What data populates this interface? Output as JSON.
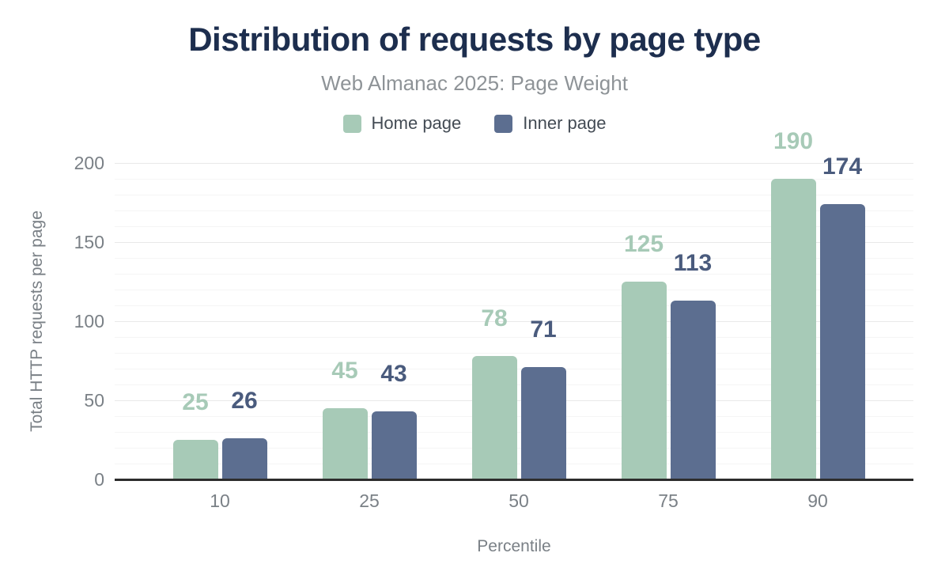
{
  "chart_data": {
    "type": "bar",
    "title": "Distribution of requests by page type",
    "subtitle": "Web Almanac 2025: Page Weight",
    "xlabel": "Percentile",
    "ylabel": "Total HTTP requests per page",
    "categories": [
      "10",
      "25",
      "50",
      "75",
      "90"
    ],
    "series": [
      {
        "name": "Home page",
        "color": "#a7cab7",
        "label_color": "#a7cab7",
        "values": [
          25,
          45,
          78,
          125,
          190
        ]
      },
      {
        "name": "Inner page",
        "color": "#5c6e90",
        "label_color": "#4a5b7d",
        "values": [
          26,
          43,
          71,
          113,
          174
        ]
      }
    ],
    "yticks": [
      0,
      50,
      100,
      150,
      200
    ],
    "ylim": [
      0,
      200
    ],
    "grid": {
      "minor_step": 10,
      "major_step": 50,
      "orientation": "horizontal"
    },
    "legend_position": "top"
  },
  "colors": {
    "title": "#1d2e4e",
    "subtitle": "#8e9397",
    "axis_text": "#7a8086",
    "axis_line": "#2d2d2d",
    "grid_minor": "#f5f5f5",
    "grid_major": "#e9e9e9",
    "background": "#ffffff"
  }
}
